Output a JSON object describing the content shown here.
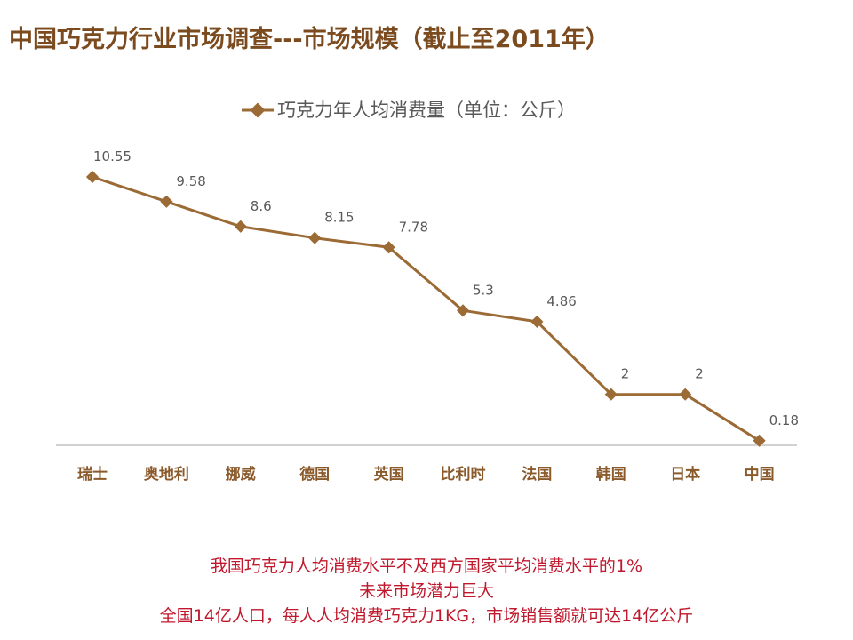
{
  "title": "中国巧克力行业市场调查---市场规模（截止至2011年）",
  "chart_data": {
    "type": "line",
    "series": [
      {
        "name": "巧克力年人均消费量（单位：公斤）",
        "values": [
          10.55,
          9.58,
          8.6,
          8.15,
          7.78,
          5.3,
          4.86,
          2,
          2,
          0.18
        ]
      }
    ],
    "categories": [
      "瑞士",
      "奥地利",
      "挪威",
      "德国",
      "英国",
      "比利时",
      "法国",
      "韩国",
      "日本",
      "中国"
    ],
    "data_labels": [
      "10.55",
      "9.58",
      "8.6",
      "8.15",
      "7.78",
      "5.3",
      "4.86",
      "2",
      "2",
      "0.18"
    ],
    "ylim": [
      0,
      11.2
    ],
    "grid": false,
    "legend_position": "top",
    "line_color": "#9b6a35"
  },
  "footer": {
    "line1": "我国巧克力人均消费水平不及西方国家平均消费水平的1%",
    "line2": "未来市场潜力巨大",
    "line3": "全国14亿人口，每人人均消费巧克力1KG，市场销售额就可达14亿公斤"
  }
}
